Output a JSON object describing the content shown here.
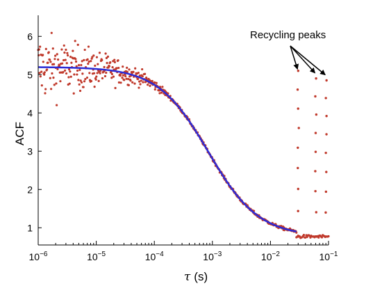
{
  "chart_data": {
    "type": "scatter",
    "title": "",
    "xlabel": {
      "symbol": "τ",
      "unit": "(s)"
    },
    "ylabel": "ACF",
    "xscale": "log",
    "xlim": [
      1e-06,
      0.1
    ],
    "ylim": [
      0.55,
      6.55
    ],
    "grid": false,
    "x_ticks": [
      {
        "value": 1e-06,
        "base": "10",
        "exp": "−6"
      },
      {
        "value": 1e-05,
        "base": "10",
        "exp": "−5"
      },
      {
        "value": 0.0001,
        "base": "10",
        "exp": "−4"
      },
      {
        "value": 0.001,
        "base": "10",
        "exp": "−3"
      },
      {
        "value": 0.01,
        "base": "10",
        "exp": "−2"
      },
      {
        "value": 0.1,
        "base": "10",
        "exp": "−1"
      }
    ],
    "y_ticks": [
      {
        "value": 1,
        "label": "1"
      },
      {
        "value": 2,
        "label": "2"
      },
      {
        "value": 3,
        "label": "3"
      },
      {
        "value": 4,
        "label": "4"
      },
      {
        "value": 5,
        "label": "5"
      },
      {
        "value": 6,
        "label": "6"
      }
    ],
    "series": [
      {
        "role": "data",
        "color": "#c0392b",
        "model": {
          "plateau": 5.2,
          "baseline": 0.77,
          "decay_time": 0.00085
        },
        "recycling_peaks": [
          {
            "x": 0.03,
            "y_max": 5.1
          },
          {
            "x": 0.06,
            "y_max": 4.9
          },
          {
            "x": 0.09,
            "y_max": 4.85
          }
        ]
      },
      {
        "role": "fit",
        "color": "#2b2bd6",
        "model": {
          "plateau": 5.2,
          "baseline": 0.77,
          "decay_time": 0.00085
        }
      }
    ],
    "annotations": [
      {
        "text": "Recycling peaks",
        "targets": [
          {
            "x": 0.03,
            "y": 5.0
          },
          {
            "x": 0.06,
            "y": 4.9
          },
          {
            "x": 0.09,
            "y": 4.85
          }
        ]
      }
    ]
  }
}
